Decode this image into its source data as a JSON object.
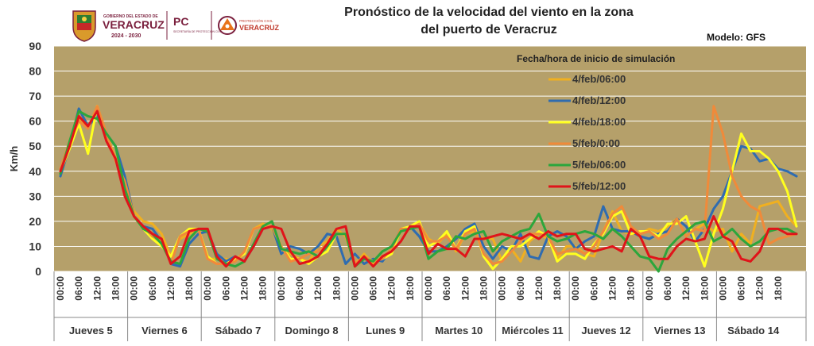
{
  "header": {
    "title_line1": "Pronóstico de la velocidad del viento en la zona",
    "title_line2": "del puerto de Veracruz",
    "model": "Modelo: GFS",
    "logo_gov_small": "GOBIERNO DEL ESTADO DE",
    "logo_gov_name": "VERACRUZ",
    "logo_gov_years": "2024 - 2030",
    "logo_pc": "PC",
    "logo_pc_sub": "SECRETARÍA DE PROTECCIÓN CIVIL",
    "logo_pc2_small": "PROTECCIÓN CIVIL",
    "logo_pc2_name": "VERACRUZ"
  },
  "colors": {
    "plot_bg": "#B5A06A",
    "grid": "#ffffff",
    "gov": "#7a1f3d"
  },
  "chart_data": {
    "type": "line",
    "ylabel": "Km/h",
    "ylim": [
      0,
      90
    ],
    "yticks": [
      0,
      10,
      20,
      30,
      40,
      50,
      60,
      70,
      80,
      90
    ],
    "xtick_labels": [
      "00:00",
      "06:00",
      "12:00",
      "18:00"
    ],
    "days": [
      "Jueves 5",
      "Viernes 6",
      "Sábado 7",
      "Domingo 8",
      "Lunes 9",
      "Martes 10",
      "Miércoles 11",
      "Jueves 12",
      "Viernes 13",
      "Sábado 14"
    ],
    "legend_title": "Fecha/hora de inicio de simulación",
    "legend_position": "top-right",
    "grid": true,
    "series": [
      {
        "name": "4/feb/06:00",
        "color": "#F0B020",
        "values": [
          40,
          52,
          61,
          57,
          66,
          55,
          45,
          34,
          24,
          20,
          19,
          15,
          6,
          13,
          15,
          17,
          5,
          5,
          5,
          4,
          7,
          17,
          19,
          17,
          8,
          7,
          5,
          4,
          10,
          12,
          17,
          14,
          3,
          7,
          3,
          6,
          8,
          16,
          17,
          19,
          13,
          11,
          15,
          8,
          15,
          16,
          13,
          13,
          4,
          9,
          4,
          12,
          15,
          13,
          5,
          10,
          10,
          7,
          6,
          16,
          24,
          16,
          15,
          15,
          17,
          16,
          18,
          21,
          14,
          17,
          19,
          16,
          17,
          8,
          15,
          11,
          26,
          27,
          28,
          22,
          18
        ]
      },
      {
        "name": "4/feb/12:00",
        "color": "#2F6CB0",
        "values": [
          38,
          50,
          65,
          58,
          62,
          55,
          50,
          38,
          22,
          18,
          17,
          12,
          3,
          2,
          11,
          15,
          16,
          7,
          4,
          6,
          4,
          10,
          17,
          18,
          7,
          10,
          9,
          7,
          10,
          15,
          14,
          3,
          7,
          3,
          5,
          4,
          9,
          17,
          18,
          14,
          8,
          8,
          10,
          13,
          17,
          19,
          10,
          5,
          10,
          8,
          15,
          6,
          5,
          14,
          16,
          14,
          9,
          12,
          14,
          26,
          17,
          16,
          16,
          14,
          13,
          15,
          16,
          21,
          18,
          12,
          17,
          25,
          30,
          40,
          50,
          49,
          44,
          45,
          41,
          40,
          38
        ]
      },
      {
        "name": "4/feb/18:00",
        "color": "#FFFF1F",
        "values": [
          40,
          49,
          59,
          47,
          66,
          53,
          45,
          33,
          22,
          17,
          13,
          10,
          6,
          14,
          17,
          17,
          6,
          3,
          3,
          5,
          7,
          17,
          18,
          18,
          10,
          5,
          5,
          3,
          6,
          8,
          15,
          15,
          3,
          6,
          4,
          5,
          7,
          17,
          18,
          20,
          10,
          12,
          16,
          9,
          16,
          18,
          6,
          1,
          5,
          10,
          10,
          13,
          16,
          14,
          4,
          7,
          7,
          5,
          11,
          15,
          22,
          24,
          15,
          16,
          16,
          14,
          19,
          19,
          22,
          12,
          2,
          15,
          25,
          40,
          55,
          48,
          48,
          45,
          40,
          32,
          18
        ]
      },
      {
        "name": "5/feb/0:00",
        "color": "#F08A3A",
        "values": [
          41,
          52,
          60,
          57,
          66,
          55,
          44,
          36,
          22,
          18,
          14,
          12,
          3,
          14,
          16,
          17,
          5,
          3,
          3,
          4,
          8,
          17,
          18,
          18,
          10,
          4,
          5,
          7,
          8,
          11,
          15,
          15,
          3,
          6,
          4,
          5,
          9,
          17,
          17,
          19,
          12,
          12,
          14,
          9,
          15,
          17,
          7,
          3,
          4,
          8,
          12,
          15,
          15,
          14,
          7,
          8,
          9,
          7,
          10,
          16,
          23,
          26,
          18,
          15,
          16,
          13,
          15,
          21,
          14,
          17,
          16,
          66,
          55,
          38,
          30,
          26,
          24,
          11,
          13,
          14,
          15
        ]
      },
      {
        "name": "5/feb/06:00",
        "color": "#2CA63C",
        "values": [
          39,
          52,
          64,
          62,
          61,
          55,
          50,
          33,
          22,
          17,
          15,
          11,
          4,
          3,
          13,
          17,
          16,
          5,
          3,
          2,
          4,
          11,
          18,
          20,
          9,
          8,
          7,
          8,
          6,
          10,
          15,
          15,
          2,
          5,
          4,
          8,
          10,
          16,
          17,
          18,
          5,
          8,
          9,
          14,
          13,
          15,
          16,
          8,
          12,
          14,
          16,
          17,
          23,
          14,
          12,
          13,
          15,
          16,
          15,
          13,
          17,
          14,
          10,
          6,
          5,
          0,
          9,
          13,
          16,
          19,
          20,
          12,
          14,
          17,
          13,
          10,
          12,
          16,
          17,
          17,
          15
        ]
      },
      {
        "name": "5/feb/12:00",
        "color": "#E0141A",
        "values": [
          40,
          50,
          62,
          58,
          64,
          52,
          45,
          30,
          22,
          18,
          15,
          13,
          3,
          6,
          16,
          17,
          17,
          6,
          2,
          6,
          4,
          10,
          17,
          18,
          17,
          8,
          3,
          4,
          6,
          11,
          17,
          18,
          2,
          6,
          2,
          6,
          8,
          12,
          18,
          18,
          7,
          11,
          9,
          9,
          6,
          13,
          13,
          14,
          15,
          14,
          13,
          15,
          13,
          16,
          14,
          15,
          15,
          9,
          8,
          9,
          10,
          8,
          17,
          14,
          6,
          5,
          5,
          10,
          13,
          12,
          13,
          22,
          14,
          12,
          5,
          4,
          8,
          17,
          17,
          15,
          15
        ]
      }
    ]
  }
}
